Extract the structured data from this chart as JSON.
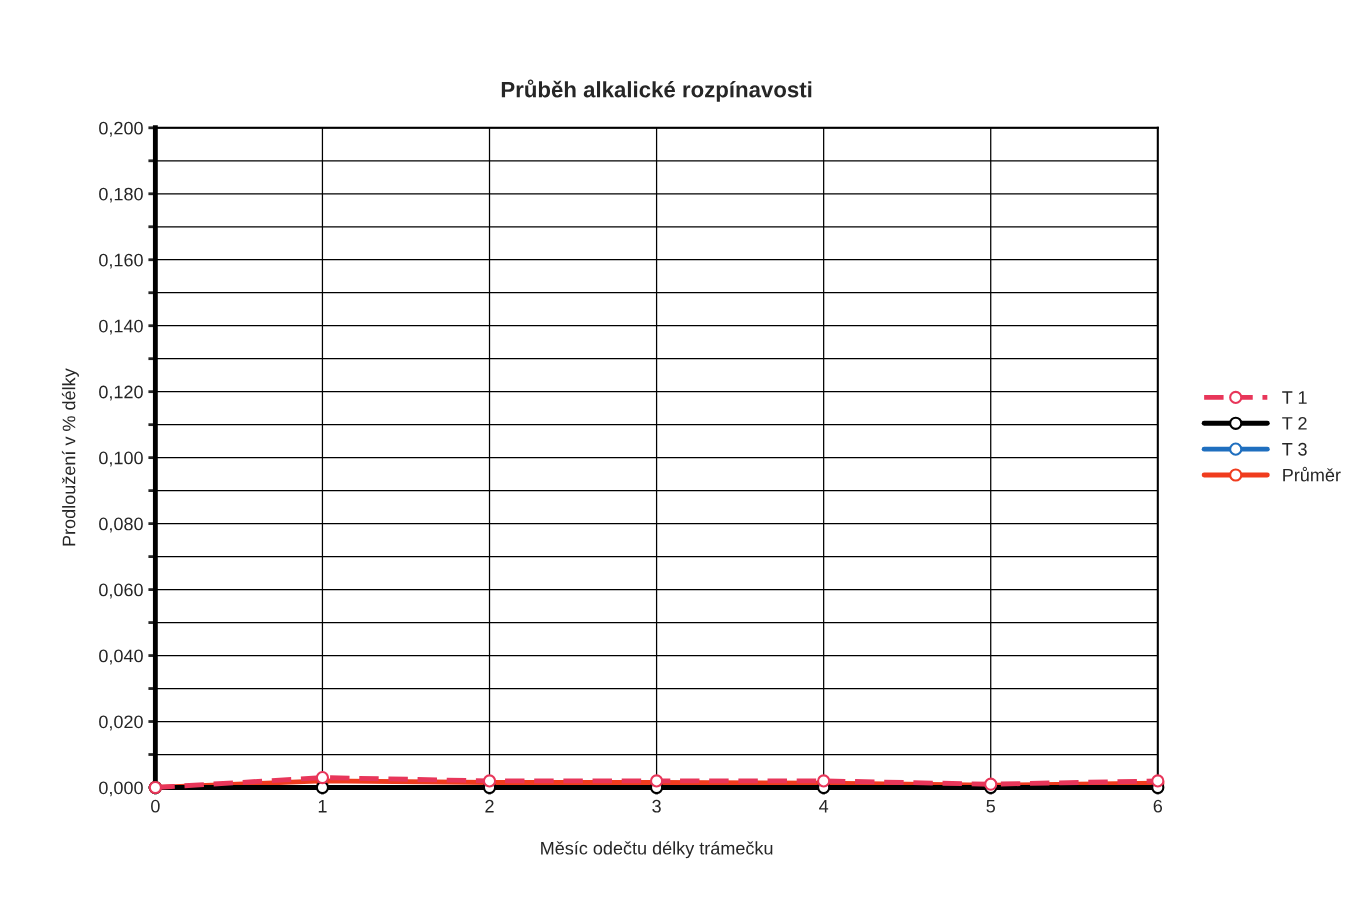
{
  "chart_data": {
    "type": "line",
    "title": "Průběh alkalické rozpínavosti",
    "xlabel": "Měsíc odečtu délky trámečku",
    "ylabel": "Prodloužení v % délky",
    "x": [
      0,
      1,
      2,
      3,
      4,
      5,
      6
    ],
    "series": [
      {
        "name": "T 1",
        "color": "#e8365a",
        "values": [
          0,
          0.003,
          0.002,
          0.002,
          0.002,
          0.001,
          0.002
        ],
        "line_style": "dashed"
      },
      {
        "name": "T 2",
        "color": "#000000",
        "values": [
          0,
          0,
          0,
          0,
          0,
          0,
          0
        ],
        "line_style": "solid"
      },
      {
        "name": "T 3",
        "color": "#1f6fbf",
        "values": [
          null,
          null,
          null,
          null,
          null,
          null,
          null
        ],
        "line_style": "solid"
      },
      {
        "name": "Průměr",
        "color": "#f03c1e",
        "values": [
          0,
          0.002,
          0.0015,
          0.0015,
          0.0013,
          0.0007,
          0.0013
        ],
        "line_style": "solid"
      }
    ],
    "xlim": [
      0,
      6
    ],
    "xticks": [
      0,
      1,
      2,
      3,
      4,
      5,
      6
    ],
    "ylim": [
      0,
      0.2
    ],
    "yticks": [
      {
        "value": 0,
        "label": "0,000"
      },
      {
        "value": 0.01,
        "label": null
      },
      {
        "value": 0.02,
        "label": "0,020"
      },
      {
        "value": 0.03,
        "label": null
      },
      {
        "value": 0.04,
        "label": "0,040"
      },
      {
        "value": 0.05,
        "label": null
      },
      {
        "value": 0.06,
        "label": "0,060"
      },
      {
        "value": 0.07,
        "label": null
      },
      {
        "value": 0.08,
        "label": "0,080"
      },
      {
        "value": 0.09,
        "label": null
      },
      {
        "value": 0.1,
        "label": "0,100"
      },
      {
        "value": 0.11,
        "label": null
      },
      {
        "value": 0.12,
        "label": "0,120"
      },
      {
        "value": 0.13,
        "label": null
      },
      {
        "value": 0.14,
        "label": "0,140"
      },
      {
        "value": 0.15,
        "label": null
      },
      {
        "value": 0.16,
        "label": "0,160"
      },
      {
        "value": 0.17,
        "label": null
      },
      {
        "value": 0.18,
        "label": "0,180"
      },
      {
        "value": 0.19,
        "label": null
      },
      {
        "value": 0.2,
        "label": "0,200"
      }
    ],
    "grid": true,
    "legend": "right",
    "marker": "circle"
  }
}
